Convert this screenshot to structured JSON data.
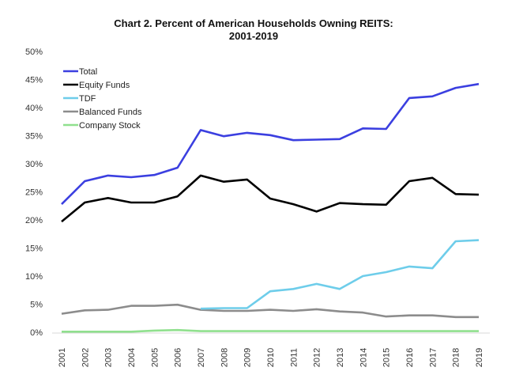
{
  "chart_data": {
    "type": "line",
    "title": "Chart 2. Percent of American Households Owning REITS:",
    "subtitle": "2001-2019",
    "xlabel": "",
    "ylabel": "",
    "x": [
      "2001",
      "2002",
      "2003",
      "2004",
      "2005",
      "2006",
      "2007",
      "2008",
      "2009",
      "2010",
      "2011",
      "2012",
      "2013",
      "2014",
      "2015",
      "2016",
      "2017",
      "2018",
      "2019"
    ],
    "ylim": [
      0,
      50
    ],
    "yticks": [
      "0%",
      "5%",
      "10%",
      "15%",
      "20%",
      "25%",
      "30%",
      "35%",
      "40%",
      "45%",
      "50%"
    ],
    "ytick_values": [
      0,
      5,
      10,
      15,
      20,
      25,
      30,
      35,
      40,
      45,
      50
    ],
    "grid": false,
    "legend_position": "top-left",
    "series": [
      {
        "name": "Total",
        "color": "#3b3fe0",
        "values": [
          22.8,
          26.9,
          27.9,
          27.6,
          28.0,
          29.3,
          36.0,
          34.9,
          35.5,
          35.1,
          34.2,
          34.3,
          34.4,
          36.3,
          36.2,
          41.7,
          42.0,
          43.5,
          44.2
        ]
      },
      {
        "name": "Equity Funds",
        "color": "#000000",
        "values": [
          19.7,
          23.1,
          23.9,
          23.1,
          23.1,
          24.2,
          27.9,
          26.8,
          27.2,
          23.8,
          22.8,
          21.5,
          23.0,
          22.8,
          22.7,
          26.9,
          27.5,
          24.6,
          24.5
        ]
      },
      {
        "name": "TDF",
        "color": "#6ecdea",
        "values": [
          null,
          null,
          null,
          null,
          null,
          null,
          4.2,
          4.3,
          4.3,
          7.3,
          7.7,
          8.6,
          7.7,
          10.0,
          10.7,
          11.7,
          11.4,
          16.2,
          16.4
        ]
      },
      {
        "name": "Balanced Funds",
        "color": "#8c8c8c",
        "values": [
          3.3,
          3.9,
          4.0,
          4.7,
          4.7,
          4.9,
          4.0,
          3.8,
          3.8,
          4.0,
          3.8,
          4.1,
          3.7,
          3.5,
          2.8,
          3.0,
          3.0,
          2.7,
          2.7
        ]
      },
      {
        "name": "Company Stock",
        "color": "#90e08e",
        "values": [
          0.1,
          0.1,
          0.1,
          0.1,
          0.3,
          0.4,
          0.2,
          0.2,
          0.2,
          0.2,
          0.2,
          0.2,
          0.2,
          0.2,
          0.2,
          0.2,
          0.2,
          0.2,
          0.2
        ]
      }
    ]
  }
}
